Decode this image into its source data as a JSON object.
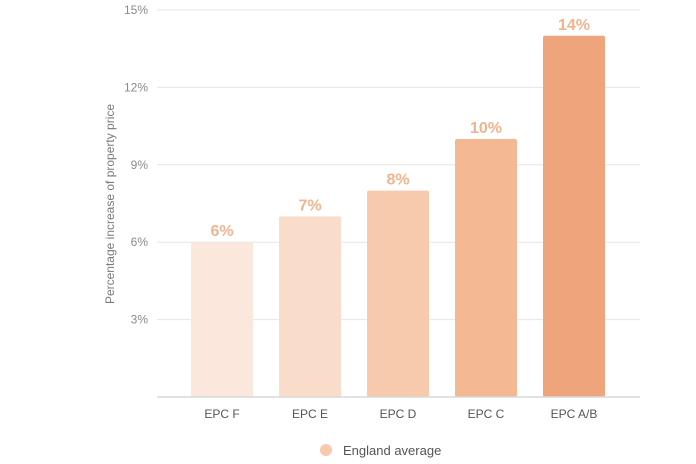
{
  "chart_data": {
    "type": "bar",
    "categories": [
      "EPC F",
      "EPC E",
      "EPC D",
      "EPC C",
      "EPC A/B"
    ],
    "series": [
      {
        "name": "England average",
        "values": [
          6,
          7,
          8,
          10,
          14
        ],
        "data_labels": [
          "6%",
          "7%",
          "8%",
          "10%",
          "14%"
        ]
      }
    ],
    "bar_colors": [
      "#fbe7dc",
      "#f9dcca",
      "#f7c9ad",
      "#f4b993",
      "#efa57c"
    ],
    "legend_color": "#f7c9ad",
    "ylabel": "Percentage increase of property price",
    "ylim": [
      0,
      15
    ],
    "yticks": [
      3,
      6,
      9,
      12,
      15
    ],
    "ytick_labels": [
      "3%",
      "6%",
      "9%",
      "12%",
      "15%"
    ],
    "grid": true,
    "legend_position": "bottom"
  }
}
